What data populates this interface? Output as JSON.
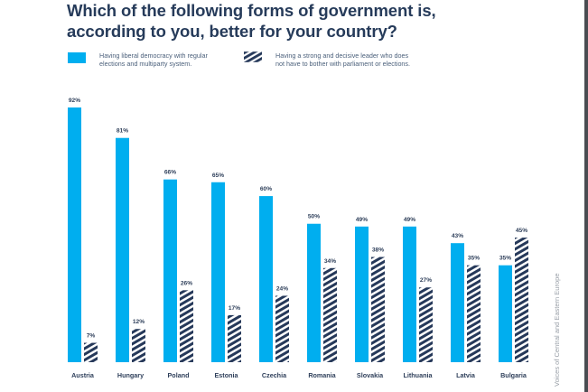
{
  "chart_data": {
    "type": "bar",
    "title": "Which of the following forms of government is, according to you, better for your country?",
    "xlabel": "",
    "ylabel": "",
    "ylim": [
      0,
      100
    ],
    "grid": false,
    "legend_position": "top",
    "categories": [
      "Austria",
      "Hungary",
      "Poland",
      "Estonia",
      "Czechia",
      "Romania",
      "Slovakia",
      "Lithuania",
      "Latvia",
      "Bulgaria"
    ],
    "series": [
      {
        "name": "Having liberal democracy with regular elections and multiparty system.",
        "style": "solid",
        "color": "#00aeef",
        "values": [
          92,
          81,
          66,
          65,
          60,
          50,
          49,
          49,
          43,
          35
        ]
      },
      {
        "name": "Having a strong and decisive leader who does not have to bother with parliament or elections.",
        "style": "hatched",
        "color": "#26395a",
        "values": [
          7,
          12,
          26,
          17,
          24,
          34,
          38,
          27,
          35,
          45
        ]
      }
    ],
    "value_suffix": "%",
    "source_label": "Voices of Central and Eastern Europe"
  },
  "header": {
    "title_line1": "Which of the following forms of government is,",
    "title_line2": "according to you, better for your country?"
  },
  "legend": {
    "item1_line1": "Having liberal democracy with regular",
    "item1_line2": "elections and multiparty system.",
    "item2_line1": "Having a strong and decisive leader who does",
    "item2_line2": "not have to bother with parliament or elections."
  }
}
